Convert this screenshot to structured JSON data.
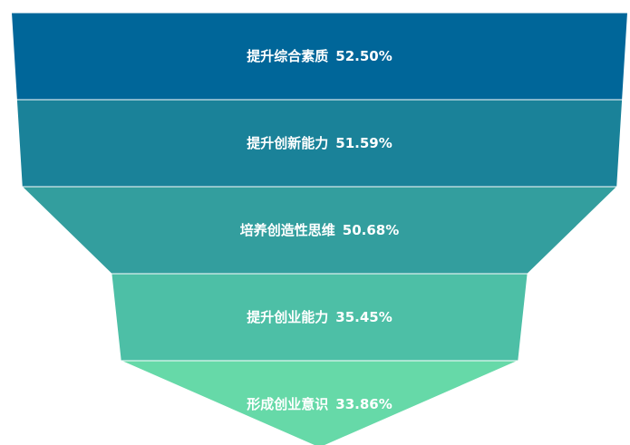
{
  "chart_data": {
    "type": "funnel",
    "title": "",
    "categories": [
      "提升综合素质",
      "提升创新能力",
      "培养创造性思维",
      "提升创业能力",
      "形成创业意识"
    ],
    "values": [
      52.5,
      51.59,
      50.68,
      35.45,
      33.86
    ],
    "value_labels": [
      "52.50%",
      "51.59%",
      "50.68%",
      "35.45%",
      "33.86%"
    ],
    "unit": "%",
    "sort": "descending",
    "legend": "none",
    "colors": [
      "#006699",
      "#1a8299",
      "#339e9e",
      "#4dbfa6",
      "#66d9a8"
    ]
  }
}
